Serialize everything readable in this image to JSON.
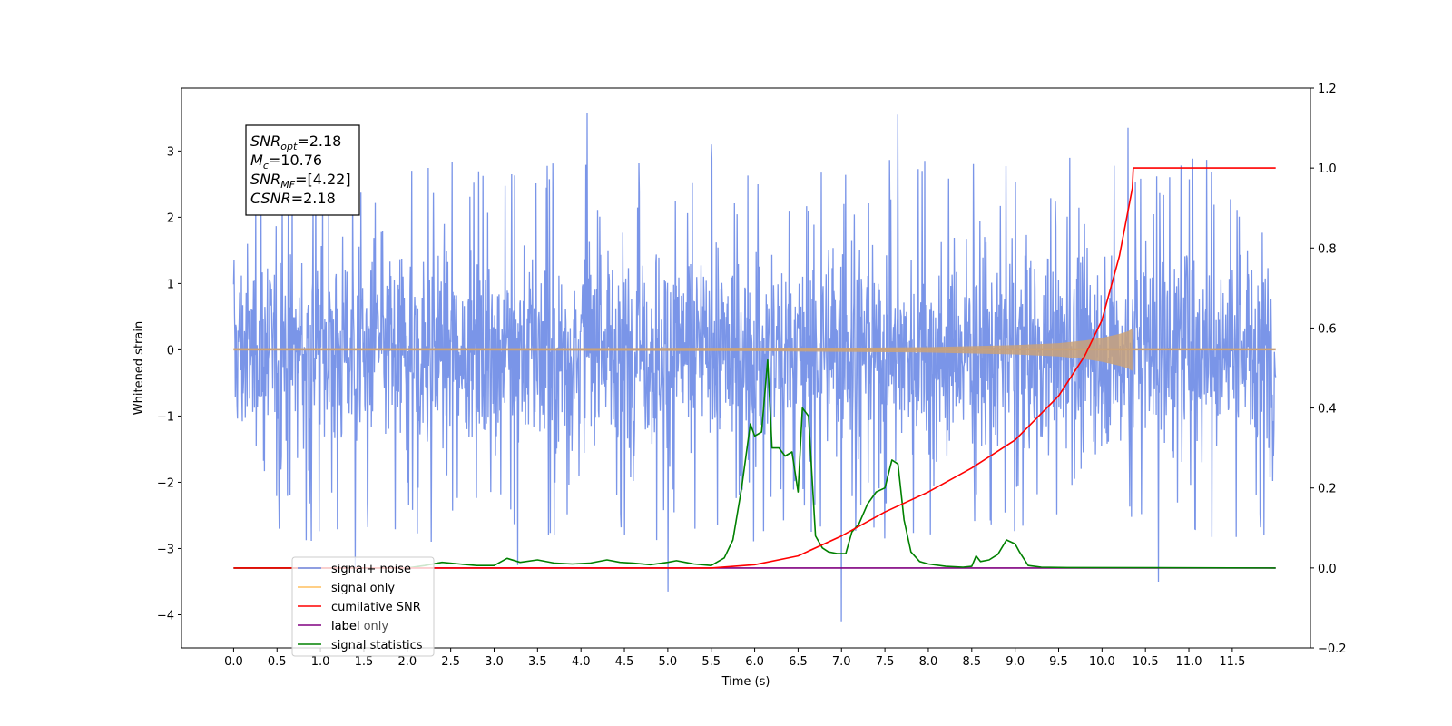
{
  "chart_data": {
    "type": "line",
    "xlabel": "Time (s)",
    "ylabel": "Whitened strain",
    "ylabel_right": "",
    "xlim": [
      -0.6,
      12.4
    ],
    "ylim": [
      -4.5,
      3.95
    ],
    "ylim_right": [
      -0.2,
      1.2
    ],
    "x_ticks": [
      0.0,
      0.5,
      1.0,
      1.5,
      2.0,
      2.5,
      3.0,
      3.5,
      4.0,
      4.5,
      5.0,
      5.5,
      6.0,
      6.5,
      7.0,
      7.5,
      8.0,
      8.5,
      9.0,
      9.5,
      10.0,
      10.5,
      11.0,
      11.5
    ],
    "x_tick_labels": [
      "0.0",
      "0.5",
      "1.0",
      "1.5",
      "2.0",
      "2.5",
      "3.0",
      "3.5",
      "4.0",
      "4.5",
      "5.0",
      "5.5",
      "6.0",
      "6.5",
      "7.0",
      "7.5",
      "8.0",
      "8.5",
      "9.0",
      "9.5",
      "10.0",
      "10.5",
      "11.0",
      "11.5"
    ],
    "y_ticks": [
      -4,
      -3,
      -2,
      -1,
      0,
      1,
      2,
      3
    ],
    "y_tick_labels": [
      "−4",
      "−3",
      "−2",
      "−1",
      "0",
      "1",
      "2",
      "3"
    ],
    "y_right_ticks": [
      -0.2,
      0.0,
      0.2,
      0.4,
      0.6,
      0.8,
      1.0,
      1.2
    ],
    "y_right_tick_labels": [
      "−0.2",
      "0.0",
      "0.2",
      "0.4",
      "0.6",
      "0.8",
      "1.0",
      "1.2"
    ],
    "grid": false,
    "legend_position": "bottom-left",
    "annotation_box": {
      "lines": [
        {
          "base": "SNR",
          "sub": "opt",
          "value": "=2.18"
        },
        {
          "base": "M",
          "sub": "c",
          "value": "=10.76"
        },
        {
          "base": "SNR",
          "sub": "MF",
          "value": "=[4.22]"
        },
        {
          "base": "CSNR",
          "sub": "",
          "value": "=2.18"
        }
      ]
    },
    "series": [
      {
        "name": "signal+ noise",
        "axis": "left",
        "color": "#6f8ce6",
        "x_range": [
          0.0,
          12.0
        ],
        "sample_count": 2400,
        "band": [
          -2.3,
          2.3
        ],
        "peaks": [
          {
            "x": 4.07,
            "y": 3.58
          },
          {
            "x": 7.65,
            "y": 3.55
          },
          {
            "x": 5.0,
            "y": -3.65
          },
          {
            "x": 7.0,
            "y": -4.1
          },
          {
            "x": 10.65,
            "y": -3.5
          },
          {
            "x": 3.27,
            "y": -3.25
          },
          {
            "x": 1.4,
            "y": -3.3
          },
          {
            "x": 10.3,
            "y": 3.35
          },
          {
            "x": 5.5,
            "y": 3.1
          }
        ]
      },
      {
        "name": "signal only",
        "axis": "left",
        "color": "#ffbf5e",
        "x": [
          0.0,
          3.0,
          6.0,
          8.0,
          9.0,
          9.5,
          9.8,
          10.0,
          10.2,
          10.3,
          10.35
        ],
        "envelope": [
          0.01,
          0.01,
          0.02,
          0.04,
          0.07,
          0.1,
          0.14,
          0.18,
          0.24,
          0.28,
          0.32
        ]
      },
      {
        "name": "cumilative SNR",
        "axis": "right",
        "color": "#ff0000",
        "x": [
          0.0,
          5.5,
          6.0,
          6.5,
          7.0,
          7.5,
          8.0,
          8.5,
          9.0,
          9.5,
          9.8,
          10.0,
          10.2,
          10.35,
          10.36,
          12.0
        ],
        "values": [
          0.0,
          0.0,
          0.008,
          0.03,
          0.08,
          0.14,
          0.19,
          0.25,
          0.32,
          0.43,
          0.53,
          0.62,
          0.78,
          0.95,
          1.0,
          1.0
        ]
      },
      {
        "name": "label only",
        "axis": "right",
        "color": "#800080",
        "x": [
          0.0,
          12.0
        ],
        "values": [
          0.0,
          0.0
        ]
      },
      {
        "name": "signal statistics",
        "axis": "right",
        "color": "#008000",
        "x": [
          0.0,
          2.0,
          2.2,
          2.4,
          2.6,
          2.8,
          3.0,
          3.15,
          3.3,
          3.5,
          3.7,
          3.9,
          4.1,
          4.3,
          4.45,
          4.6,
          4.8,
          5.0,
          5.1,
          5.2,
          5.3,
          5.5,
          5.65,
          5.75,
          5.85,
          5.95,
          6.0,
          6.08,
          6.15,
          6.2,
          6.28,
          6.35,
          6.43,
          6.5,
          6.55,
          6.62,
          6.7,
          6.78,
          6.85,
          6.95,
          7.05,
          7.12,
          7.2,
          7.3,
          7.4,
          7.5,
          7.58,
          7.65,
          7.72,
          7.8,
          7.9,
          8.0,
          8.2,
          8.4,
          8.5,
          8.55,
          8.6,
          8.7,
          8.8,
          8.9,
          9.0,
          9.05,
          9.15,
          9.3,
          9.6,
          12.0
        ],
        "values": [
          0.0,
          0.0,
          0.006,
          0.014,
          0.01,
          0.006,
          0.006,
          0.024,
          0.014,
          0.02,
          0.012,
          0.01,
          0.012,
          0.02,
          0.014,
          0.012,
          0.008,
          0.014,
          0.018,
          0.014,
          0.01,
          0.006,
          0.025,
          0.07,
          0.2,
          0.36,
          0.33,
          0.34,
          0.52,
          0.3,
          0.3,
          0.28,
          0.29,
          0.19,
          0.4,
          0.38,
          0.08,
          0.05,
          0.04,
          0.036,
          0.036,
          0.09,
          0.11,
          0.16,
          0.19,
          0.2,
          0.27,
          0.26,
          0.12,
          0.04,
          0.016,
          0.01,
          0.004,
          0.002,
          0.004,
          0.03,
          0.016,
          0.02,
          0.034,
          0.07,
          0.06,
          0.04,
          0.006,
          0.002,
          0.001,
          0.0
        ]
      }
    ],
    "legend": [
      {
        "label": "signal+ noise",
        "color": "#6f8ce6"
      },
      {
        "label": "signal only",
        "color": "#ffbf5e"
      },
      {
        "label": "cumilative SNR",
        "color": "#ff0000"
      },
      {
        "label": "label",
        "color": "#800080"
      },
      {
        "label": "signal statistics",
        "color": "#008000"
      }
    ],
    "overlapped_label_text": "label only"
  }
}
